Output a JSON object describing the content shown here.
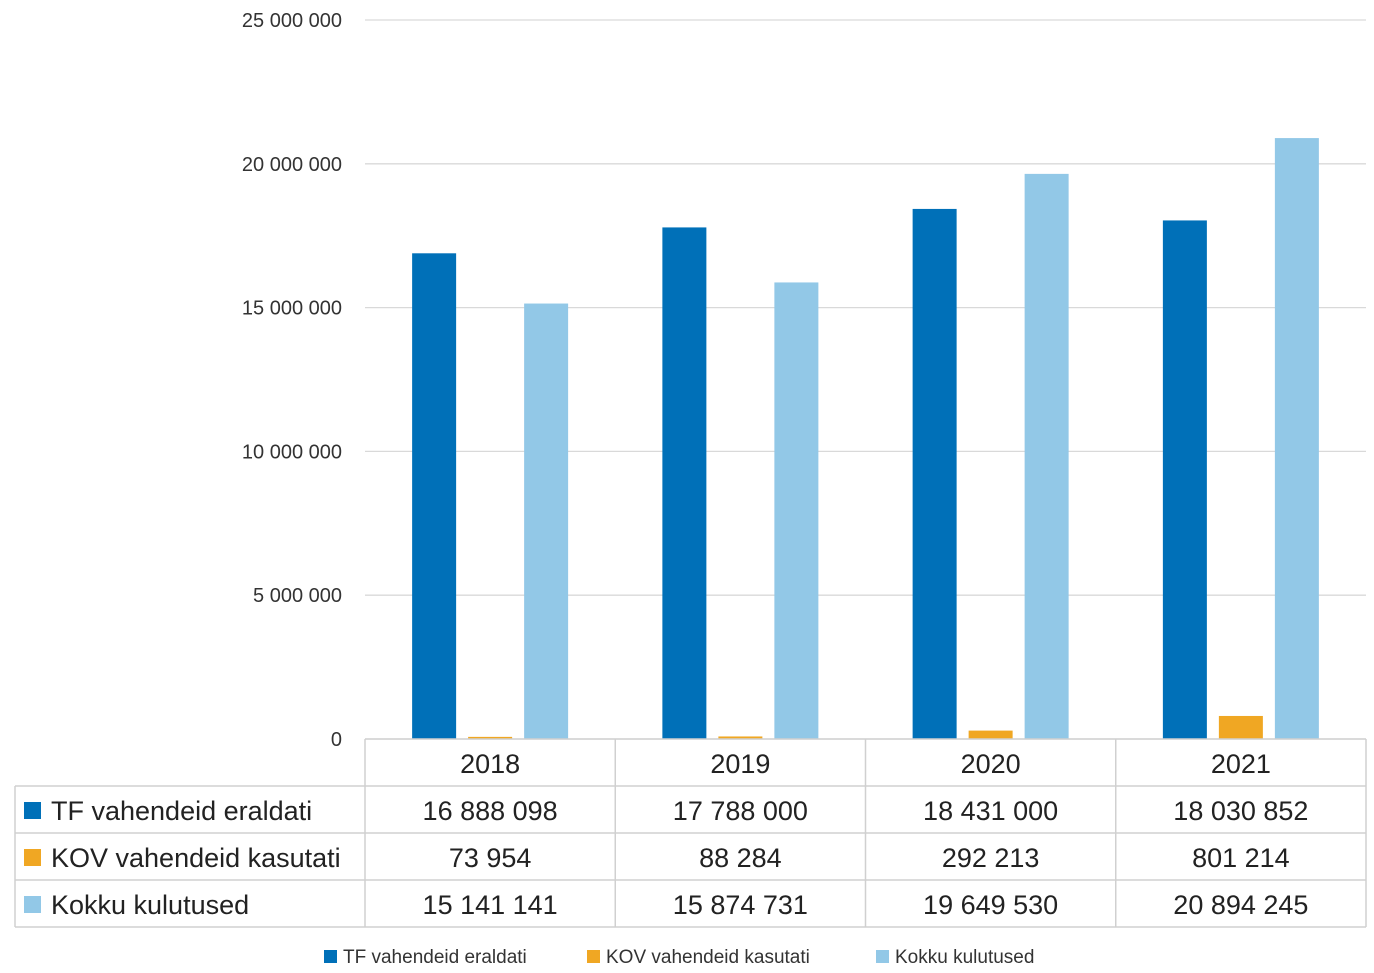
{
  "chart_data": {
    "type": "bar",
    "categories": [
      "2018",
      "2019",
      "2020",
      "2021"
    ],
    "series": [
      {
        "name": "TF vahendeid eraldati",
        "color": "#0070b8",
        "values": [
          16888098,
          17788000,
          18431000,
          18030852
        ],
        "labels": [
          "16 888 098",
          "17 788 000",
          "18 431 000",
          "18 030 852"
        ]
      },
      {
        "name": "KOV vahendeid kasutati",
        "color": "#f0a723",
        "values": [
          73954,
          88284,
          292213,
          801214
        ],
        "labels": [
          "73 954",
          "88 284",
          "292 213",
          "801 214"
        ]
      },
      {
        "name": "Kokku kulutused",
        "color": "#92c8e7",
        "values": [
          15141141,
          15874731,
          19649530,
          20894245
        ],
        "labels": [
          "15 141 141",
          "15 874 731",
          "19 649 530",
          "20 894 245"
        ]
      }
    ],
    "ylim": [
      0,
      25000000
    ],
    "yticks": [
      0,
      5000000,
      10000000,
      15000000,
      20000000,
      25000000
    ],
    "ytick_labels": [
      "0",
      "5 000 000",
      "10 000 000",
      "15 000 000",
      "20 000 000",
      "25 000 000"
    ],
    "grid": true,
    "legend": "bottom",
    "data_table": true
  }
}
